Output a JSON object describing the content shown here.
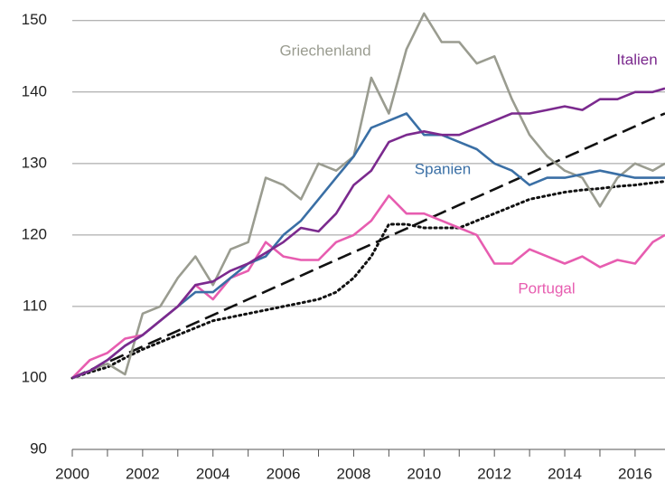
{
  "chart_data": {
    "type": "line",
    "x": [
      2000,
      2000.5,
      2001,
      2001.5,
      2002,
      2002.5,
      2003,
      2003.5,
      2004,
      2004.5,
      2005,
      2005.5,
      2006,
      2006.5,
      2007,
      2007.5,
      2008,
      2008.5,
      2009,
      2009.5,
      2010,
      2010.5,
      2011,
      2011.5,
      2012,
      2012.5,
      2013,
      2013.5,
      2014,
      2014.5,
      2015,
      2015.5,
      2016,
      2016.5,
      2016.85
    ],
    "series": [
      {
        "name": "Griechenland",
        "color": "#9a9c90",
        "style": "solid",
        "values": [
          100,
          101,
          102,
          100.5,
          109,
          110,
          114,
          117,
          113,
          118,
          119,
          128,
          127,
          125,
          130,
          129,
          131,
          142,
          137,
          146,
          151,
          147,
          147,
          144,
          145,
          139,
          134,
          131,
          129,
          128,
          124,
          128,
          130,
          129,
          130
        ]
      },
      {
        "name": "Italien",
        "color": "#7b2a8e",
        "style": "solid",
        "values": [
          100,
          101,
          102.5,
          104.5,
          106,
          108,
          110,
          113,
          113.5,
          115,
          116,
          117.5,
          119,
          121,
          120.5,
          123,
          127,
          129,
          133,
          134,
          134.5,
          134,
          134,
          135,
          136,
          137,
          137,
          137.5,
          138,
          137.5,
          139,
          139,
          140,
          140,
          140.5
        ]
      },
      {
        "name": "Spanien",
        "color": "#3a6fa5",
        "style": "solid",
        "values": [
          100,
          101,
          102.5,
          104.5,
          106,
          108,
          110,
          112,
          112,
          114,
          116,
          117,
          120,
          122,
          125,
          128,
          131,
          135,
          136,
          137,
          134,
          134,
          133,
          132,
          130,
          129,
          127,
          128,
          128,
          128.5,
          129,
          128.5,
          128,
          128,
          128
        ]
      },
      {
        "name": "Portugal",
        "color": "#e75db0",
        "style": "solid",
        "values": [
          100,
          102.5,
          103.5,
          105.5,
          106,
          108,
          110,
          113,
          111,
          114,
          115,
          119,
          117,
          116.5,
          116.5,
          119,
          120,
          122,
          125.5,
          123,
          123,
          122,
          121,
          120,
          116,
          116,
          118,
          117,
          116,
          117,
          115.5,
          116.5,
          116,
          119,
          120
        ]
      },
      {
        "color": "#111111",
        "style": "dashed",
        "values": [
          100,
          101.1,
          102.2,
          103.3,
          104.4,
          105.5,
          106.6,
          107.7,
          108.8,
          109.9,
          111,
          112.1,
          113.2,
          114.3,
          115.4,
          116.5,
          117.6,
          118.7,
          119.8,
          120.9,
          122,
          123.1,
          124.2,
          125.3,
          126.4,
          127.5,
          128.6,
          129.7,
          130.8,
          131.9,
          133,
          134.1,
          135.2,
          136.3,
          137
        ]
      },
      {
        "color": "#111111",
        "style": "dotted",
        "values": [
          100,
          100.8,
          101.5,
          102.8,
          104,
          105,
          106,
          107,
          108,
          108.5,
          109,
          109.5,
          110,
          110.5,
          111,
          112,
          114,
          117,
          121.5,
          121.5,
          121,
          121,
          121,
          122,
          123,
          124,
          125,
          125.5,
          126,
          126.3,
          126.5,
          126.8,
          127,
          127.3,
          127.5
        ]
      }
    ],
    "xlim": [
      2000,
      2016.85
    ],
    "xticks": [
      2000,
      2002,
      2004,
      2006,
      2008,
      2010,
      2012,
      2014,
      2016
    ],
    "ylim": [
      90,
      152.5
    ],
    "yticks": [
      90,
      100,
      110,
      120,
      130,
      140,
      150
    ],
    "grid": true
  }
}
